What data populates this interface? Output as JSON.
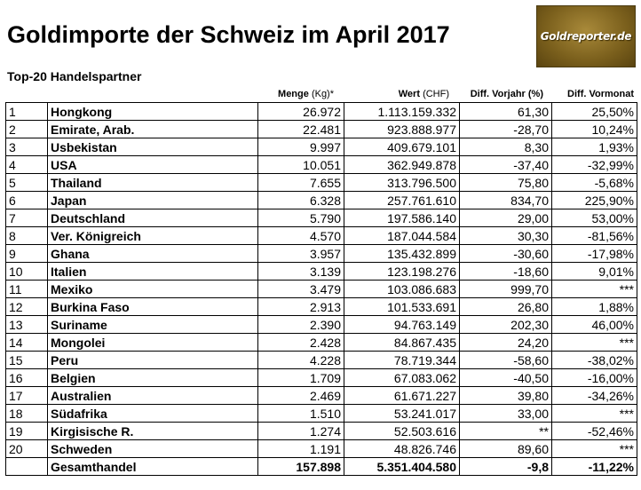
{
  "title": "Goldimporte der Schweiz im April 2017",
  "subtitle": "Top-20 Handelspartner",
  "logo_text": "Goldreporter.de",
  "headers": {
    "menge_bold": "Menge",
    "menge_light": "(Kg)*",
    "wert_bold": "Wert",
    "wert_light": "(CHF)",
    "vorjahr": "Diff. Vorjahr (%)",
    "vormonat": "Diff. Vormonat"
  },
  "rows": [
    {
      "rank": "1",
      "country": "Hongkong",
      "menge": "26.972",
      "wert": "1.113.159.332",
      "vorjahr": "61,30",
      "vormonat": "25,50%"
    },
    {
      "rank": "2",
      "country": "Emirate, Arab.",
      "menge": "22.481",
      "wert": "923.888.977",
      "vorjahr": "-28,70",
      "vormonat": "10,24%"
    },
    {
      "rank": "3",
      "country": "Usbekistan",
      "menge": "9.997",
      "wert": "409.679.101",
      "vorjahr": "8,30",
      "vormonat": "1,93%"
    },
    {
      "rank": "4",
      "country": "USA",
      "menge": "10.051",
      "wert": "362.949.878",
      "vorjahr": "-37,40",
      "vormonat": "-32,99%"
    },
    {
      "rank": "5",
      "country": "Thailand",
      "menge": "7.655",
      "wert": "313.796.500",
      "vorjahr": "75,80",
      "vormonat": "-5,68%"
    },
    {
      "rank": "6",
      "country": "Japan",
      "menge": "6.328",
      "wert": "257.761.610",
      "vorjahr": "834,70",
      "vormonat": "225,90%"
    },
    {
      "rank": "7",
      "country": "Deutschland",
      "menge": "5.790",
      "wert": "197.586.140",
      "vorjahr": "29,00",
      "vormonat": "53,00%"
    },
    {
      "rank": "8",
      "country": "Ver. Königreich",
      "menge": "4.570",
      "wert": "187.044.584",
      "vorjahr": "30,30",
      "vormonat": "-81,56%"
    },
    {
      "rank": "9",
      "country": "Ghana",
      "menge": "3.957",
      "wert": "135.432.899",
      "vorjahr": "-30,60",
      "vormonat": "-17,98%"
    },
    {
      "rank": "10",
      "country": "Italien",
      "menge": "3.139",
      "wert": "123.198.276",
      "vorjahr": "-18,60",
      "vormonat": "9,01%"
    },
    {
      "rank": "11",
      "country": "Mexiko",
      "menge": "3.479",
      "wert": "103.086.683",
      "vorjahr": "999,70",
      "vormonat": "***"
    },
    {
      "rank": "12",
      "country": "Burkina Faso",
      "menge": "2.913",
      "wert": "101.533.691",
      "vorjahr": "26,80",
      "vormonat": "1,88%"
    },
    {
      "rank": "13",
      "country": "Suriname",
      "menge": "2.390",
      "wert": "94.763.149",
      "vorjahr": "202,30",
      "vormonat": "46,00%"
    },
    {
      "rank": "14",
      "country": "Mongolei",
      "menge": "2.428",
      "wert": "84.867.435",
      "vorjahr": "24,20",
      "vormonat": "***"
    },
    {
      "rank": "15",
      "country": "Peru",
      "menge": "4.228",
      "wert": "78.719.344",
      "vorjahr": "-58,60",
      "vormonat": "-38,02%"
    },
    {
      "rank": "16",
      "country": "Belgien",
      "menge": "1.709",
      "wert": "67.083.062",
      "vorjahr": "-40,50",
      "vormonat": "-16,00%"
    },
    {
      "rank": "17",
      "country": "Australien",
      "menge": "2.469",
      "wert": "61.671.227",
      "vorjahr": "39,80",
      "vormonat": "-34,26%"
    },
    {
      "rank": "18",
      "country": "Südafrika",
      "menge": "1.510",
      "wert": "53.241.017",
      "vorjahr": "33,00",
      "vormonat": "***"
    },
    {
      "rank": "19",
      "country": "Kirgisische R.",
      "menge": "1.274",
      "wert": "52.503.616",
      "vorjahr": "**",
      "vormonat": "-52,46%"
    },
    {
      "rank": "20",
      "country": "Schweden",
      "menge": "1.191",
      "wert": "48.826.746",
      "vorjahr": "89,60",
      "vormonat": "***"
    }
  ],
  "total": {
    "label": "Gesamthandel",
    "menge": "157.898",
    "wert": "5.351.404.580",
    "vorjahr": "-9,8",
    "vormonat": "-11,22%"
  }
}
